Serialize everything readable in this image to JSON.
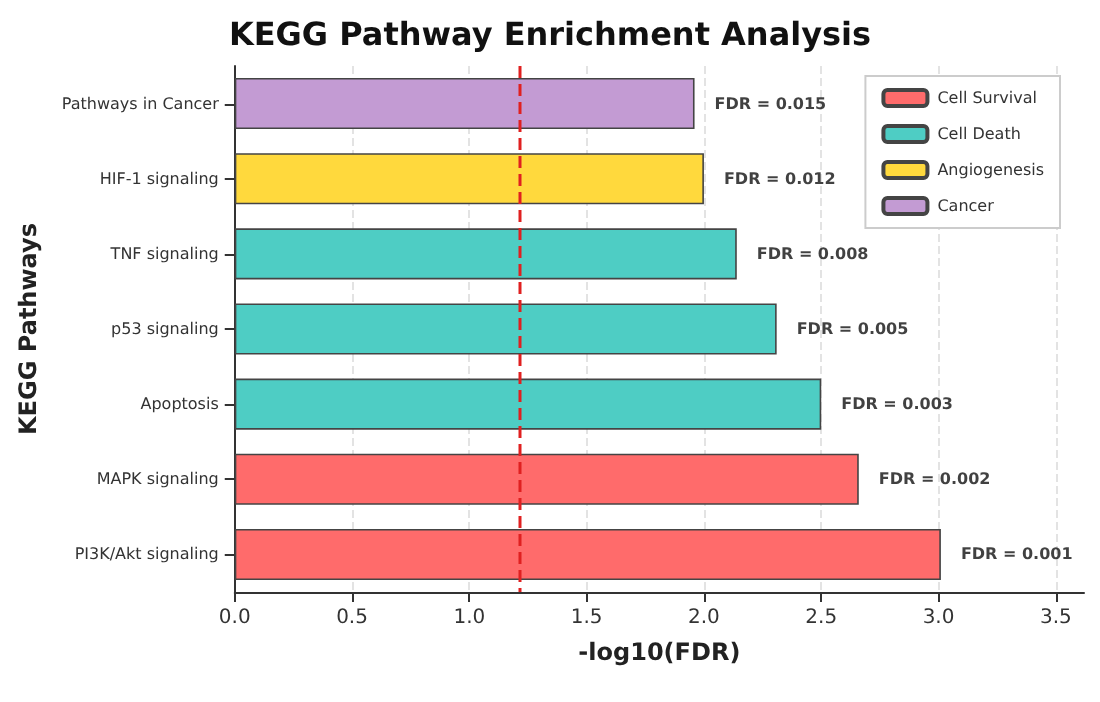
{
  "chart_data": {
    "type": "bar",
    "orientation": "horizontal",
    "title": "KEGG Pathway Enrichment Analysis",
    "xlabel": "-log10(FDR)",
    "ylabel": "KEGG Pathways",
    "categories": [
      "Pathways in Cancer",
      "HIF-1 signaling",
      "TNF signaling",
      "p53 signaling",
      "Apoptosis",
      "MAPK signaling",
      "PI3K/Akt signaling"
    ],
    "series": [
      {
        "name": "Cell Survival",
        "color": "#ff6b6b",
        "values": [
          null,
          null,
          null,
          null,
          null,
          2.66,
          3.01
        ]
      },
      {
        "name": "Cell Death",
        "color": "#4ecdc4",
        "values": [
          null,
          null,
          2.14,
          2.31,
          2.5,
          null,
          null
        ]
      },
      {
        "name": "Angiogenesis",
        "color": "#ffd93d",
        "values": [
          null,
          2.0,
          null,
          null,
          null,
          null,
          null
        ]
      },
      {
        "name": "Cancer",
        "color": "#c39bd3",
        "values": [
          1.96,
          null,
          null,
          null,
          null,
          null,
          null
        ]
      }
    ],
    "annotations": [
      {
        "text": "FDR = 0.015",
        "x": 1.96,
        "y": "Pathways in Cancer"
      },
      {
        "text": "FDR = 0.012",
        "x": 2.0,
        "y": "HIF-1 signaling"
      },
      {
        "text": "FDR = 0.008",
        "x": 2.14,
        "y": "TNF signaling"
      },
      {
        "text": "FDR = 0.005",
        "x": 2.31,
        "y": "p53 signaling"
      },
      {
        "text": "FDR = 0.003",
        "x": 2.5,
        "y": "Apoptosis"
      },
      {
        "text": "FDR = 0.002",
        "x": 2.66,
        "y": "MAPK signaling"
      },
      {
        "text": "FDR = 0.001",
        "x": 3.01,
        "y": "PI3K/Akt signaling"
      }
    ],
    "xlim": [
      0,
      3.62
    ],
    "xticks": [
      {
        "value": 0,
        "label": "0.0"
      },
      {
        "value": 0.5,
        "label": "0.5"
      },
      {
        "value": 1,
        "label": "1.0"
      },
      {
        "value": 1.5,
        "label": "1.5"
      },
      {
        "value": 2,
        "label": "2.0"
      },
      {
        "value": 2.5,
        "label": "2.5"
      },
      {
        "value": 3,
        "label": "3.0"
      },
      {
        "value": 3.5,
        "label": "3.5"
      }
    ],
    "ref_lines": [
      {
        "axis": "x",
        "value": 1.21,
        "color": "#e02020",
        "line_style": "dashed"
      }
    ],
    "grid": "x",
    "legend": "top right"
  }
}
